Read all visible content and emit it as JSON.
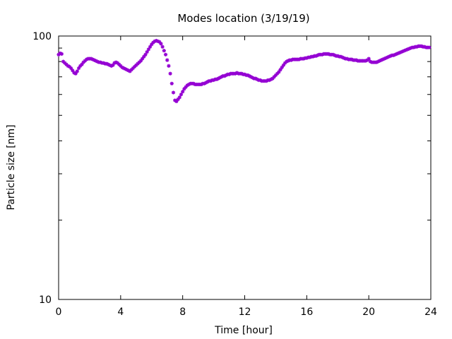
{
  "chart_data": {
    "type": "scatter",
    "title": "Modes location (3/19/19)",
    "xlabel": "Time [hour]",
    "ylabel": "Particle size [nm]",
    "xlim": [
      0,
      24
    ],
    "ylim": [
      10,
      100
    ],
    "yscale": "log",
    "xticks": [
      0,
      4,
      8,
      12,
      16,
      20,
      24
    ],
    "yticks": [
      10,
      100
    ],
    "xtick_labels": [
      "0",
      "4",
      "8",
      "12",
      "16",
      "20",
      "24"
    ],
    "ytick_labels": [
      "10",
      "100"
    ],
    "grid": false,
    "series": [
      {
        "color": "#9400d3",
        "marker": "star",
        "points": [
          [
            0.0,
            85.0
          ],
          [
            0.1,
            86.0
          ],
          [
            0.2,
            85.5
          ],
          [
            0.3,
            80.0
          ],
          [
            0.4,
            79.0
          ],
          [
            0.5,
            78.0
          ],
          [
            0.6,
            77.0
          ],
          [
            0.7,
            76.5
          ],
          [
            0.8,
            75.5
          ],
          [
            0.9,
            74.0
          ],
          [
            1.0,
            72.5
          ],
          [
            1.1,
            72.0
          ],
          [
            1.2,
            73.5
          ],
          [
            1.3,
            75.5
          ],
          [
            1.4,
            77.0
          ],
          [
            1.5,
            78.0
          ],
          [
            1.6,
            79.5
          ],
          [
            1.7,
            80.5
          ],
          [
            1.8,
            81.5
          ],
          [
            1.9,
            82.0
          ],
          [
            2.0,
            82.0
          ],
          [
            2.1,
            82.0
          ],
          [
            2.2,
            81.5
          ],
          [
            2.3,
            81.0
          ],
          [
            2.4,
            80.5
          ],
          [
            2.5,
            80.0
          ],
          [
            2.6,
            79.5
          ],
          [
            2.7,
            79.5
          ],
          [
            2.8,
            79.0
          ],
          [
            2.9,
            79.0
          ],
          [
            3.0,
            78.5
          ],
          [
            3.1,
            78.5
          ],
          [
            3.2,
            78.0
          ],
          [
            3.3,
            77.5
          ],
          [
            3.4,
            77.0
          ],
          [
            3.5,
            77.5
          ],
          [
            3.6,
            79.0
          ],
          [
            3.7,
            79.5
          ],
          [
            3.8,
            79.0
          ],
          [
            3.9,
            78.0
          ],
          [
            4.0,
            77.0
          ],
          [
            4.1,
            76.0
          ],
          [
            4.2,
            75.5
          ],
          [
            4.3,
            75.0
          ],
          [
            4.4,
            74.5
          ],
          [
            4.5,
            74.0
          ],
          [
            4.6,
            73.5
          ],
          [
            4.7,
            74.5
          ],
          [
            4.8,
            75.5
          ],
          [
            4.9,
            76.5
          ],
          [
            5.0,
            77.5
          ],
          [
            5.1,
            78.5
          ],
          [
            5.2,
            79.5
          ],
          [
            5.3,
            80.5
          ],
          [
            5.4,
            82.0
          ],
          [
            5.5,
            83.5
          ],
          [
            5.6,
            85.0
          ],
          [
            5.7,
            87.0
          ],
          [
            5.8,
            89.0
          ],
          [
            5.9,
            91.0
          ],
          [
            6.0,
            93.0
          ],
          [
            6.1,
            94.5
          ],
          [
            6.2,
            95.5
          ],
          [
            6.3,
            96.0
          ],
          [
            6.4,
            95.5
          ],
          [
            6.5,
            95.0
          ],
          [
            6.6,
            93.5
          ],
          [
            6.7,
            91.0
          ],
          [
            6.8,
            88.0
          ],
          [
            6.9,
            85.0
          ],
          [
            7.0,
            81.0
          ],
          [
            7.1,
            77.0
          ],
          [
            7.2,
            72.0
          ],
          [
            7.3,
            66.0
          ],
          [
            7.4,
            61.0
          ],
          [
            7.5,
            57.0
          ],
          [
            7.6,
            56.5
          ],
          [
            7.7,
            57.5
          ],
          [
            7.8,
            58.5
          ],
          [
            7.9,
            60.0
          ],
          [
            8.0,
            61.5
          ],
          [
            8.1,
            63.0
          ],
          [
            8.2,
            64.0
          ],
          [
            8.3,
            65.0
          ],
          [
            8.4,
            65.5
          ],
          [
            8.5,
            66.0
          ],
          [
            8.6,
            66.0
          ],
          [
            8.7,
            66.0
          ],
          [
            8.8,
            65.5
          ],
          [
            8.9,
            65.5
          ],
          [
            9.0,
            65.5
          ],
          [
            9.1,
            65.5
          ],
          [
            9.2,
            65.5
          ],
          [
            9.3,
            66.0
          ],
          [
            9.4,
            66.0
          ],
          [
            9.5,
            66.5
          ],
          [
            9.6,
            67.0
          ],
          [
            9.7,
            67.5
          ],
          [
            9.8,
            67.5
          ],
          [
            9.9,
            68.0
          ],
          [
            10.0,
            68.0
          ],
          [
            10.1,
            68.5
          ],
          [
            10.2,
            68.5
          ],
          [
            10.3,
            69.0
          ],
          [
            10.4,
            69.5
          ],
          [
            10.5,
            70.0
          ],
          [
            10.6,
            70.5
          ],
          [
            10.7,
            70.5
          ],
          [
            10.8,
            71.0
          ],
          [
            10.9,
            71.5
          ],
          [
            11.0,
            71.5
          ],
          [
            11.1,
            72.0
          ],
          [
            11.2,
            72.0
          ],
          [
            11.3,
            72.0
          ],
          [
            11.4,
            72.0
          ],
          [
            11.5,
            72.5
          ],
          [
            11.6,
            72.0
          ],
          [
            11.7,
            72.0
          ],
          [
            11.8,
            72.0
          ],
          [
            11.9,
            71.5
          ],
          [
            12.0,
            71.5
          ],
          [
            12.1,
            71.0
          ],
          [
            12.2,
            71.0
          ],
          [
            12.3,
            70.5
          ],
          [
            12.4,
            70.0
          ],
          [
            12.5,
            69.5
          ],
          [
            12.6,
            69.0
          ],
          [
            12.7,
            69.0
          ],
          [
            12.8,
            68.5
          ],
          [
            12.9,
            68.0
          ],
          [
            13.0,
            68.0
          ],
          [
            13.1,
            67.5
          ],
          [
            13.2,
            67.5
          ],
          [
            13.3,
            67.5
          ],
          [
            13.4,
            67.5
          ],
          [
            13.5,
            68.0
          ],
          [
            13.6,
            68.0
          ],
          [
            13.7,
            68.5
          ],
          [
            13.8,
            69.0
          ],
          [
            13.9,
            70.0
          ],
          [
            14.0,
            71.0
          ],
          [
            14.1,
            72.0
          ],
          [
            14.2,
            73.0
          ],
          [
            14.3,
            74.5
          ],
          [
            14.4,
            76.0
          ],
          [
            14.5,
            77.5
          ],
          [
            14.6,
            79.0
          ],
          [
            14.7,
            80.0
          ],
          [
            14.8,
            80.5
          ],
          [
            14.9,
            81.0
          ],
          [
            15.0,
            81.0
          ],
          [
            15.1,
            81.5
          ],
          [
            15.2,
            81.5
          ],
          [
            15.3,
            81.5
          ],
          [
            15.4,
            81.5
          ],
          [
            15.5,
            81.5
          ],
          [
            15.6,
            82.0
          ],
          [
            15.7,
            82.0
          ],
          [
            15.8,
            82.0
          ],
          [
            15.9,
            82.5
          ],
          [
            16.0,
            82.5
          ],
          [
            16.1,
            83.0
          ],
          [
            16.2,
            83.0
          ],
          [
            16.3,
            83.5
          ],
          [
            16.4,
            83.5
          ],
          [
            16.5,
            84.0
          ],
          [
            16.6,
            84.0
          ],
          [
            16.7,
            84.5
          ],
          [
            16.8,
            85.0
          ],
          [
            16.9,
            85.0
          ],
          [
            17.0,
            85.0
          ],
          [
            17.1,
            85.5
          ],
          [
            17.2,
            85.5
          ],
          [
            17.3,
            85.5
          ],
          [
            17.4,
            85.5
          ],
          [
            17.5,
            85.0
          ],
          [
            17.6,
            85.0
          ],
          [
            17.7,
            85.0
          ],
          [
            17.8,
            84.5
          ],
          [
            17.9,
            84.0
          ],
          [
            18.0,
            84.0
          ],
          [
            18.1,
            83.5
          ],
          [
            18.2,
            83.5
          ],
          [
            18.3,
            83.0
          ],
          [
            18.4,
            82.5
          ],
          [
            18.5,
            82.0
          ],
          [
            18.6,
            82.0
          ],
          [
            18.7,
            81.5
          ],
          [
            18.8,
            81.5
          ],
          [
            18.9,
            81.5
          ],
          [
            19.0,
            81.0
          ],
          [
            19.1,
            81.0
          ],
          [
            19.2,
            81.0
          ],
          [
            19.3,
            80.5
          ],
          [
            19.4,
            80.5
          ],
          [
            19.5,
            80.5
          ],
          [
            19.6,
            80.5
          ],
          [
            19.7,
            80.5
          ],
          [
            19.8,
            80.5
          ],
          [
            19.9,
            81.0
          ],
          [
            20.0,
            82.0
          ],
          [
            20.1,
            80.0
          ],
          [
            20.2,
            79.5
          ],
          [
            20.3,
            79.5
          ],
          [
            20.4,
            79.5
          ],
          [
            20.5,
            79.5
          ],
          [
            20.6,
            80.0
          ],
          [
            20.7,
            80.5
          ],
          [
            20.8,
            81.0
          ],
          [
            20.9,
            81.5
          ],
          [
            21.0,
            82.0
          ],
          [
            21.1,
            82.5
          ],
          [
            21.2,
            83.0
          ],
          [
            21.3,
            83.5
          ],
          [
            21.4,
            84.0
          ],
          [
            21.5,
            84.5
          ],
          [
            21.6,
            84.5
          ],
          [
            21.7,
            85.0
          ],
          [
            21.8,
            85.5
          ],
          [
            21.9,
            86.0
          ],
          [
            22.0,
            86.5
          ],
          [
            22.1,
            87.0
          ],
          [
            22.2,
            87.5
          ],
          [
            22.3,
            88.0
          ],
          [
            22.4,
            88.5
          ],
          [
            22.5,
            89.0
          ],
          [
            22.6,
            89.5
          ],
          [
            22.7,
            90.0
          ],
          [
            22.8,
            90.5
          ],
          [
            22.9,
            90.5
          ],
          [
            23.0,
            91.0
          ],
          [
            23.1,
            91.0
          ],
          [
            23.2,
            91.5
          ],
          [
            23.3,
            91.5
          ],
          [
            23.4,
            91.5
          ],
          [
            23.5,
            91.0
          ],
          [
            23.6,
            91.0
          ],
          [
            23.7,
            90.5
          ],
          [
            23.8,
            90.5
          ],
          [
            23.9,
            90.5
          ]
        ]
      }
    ]
  }
}
